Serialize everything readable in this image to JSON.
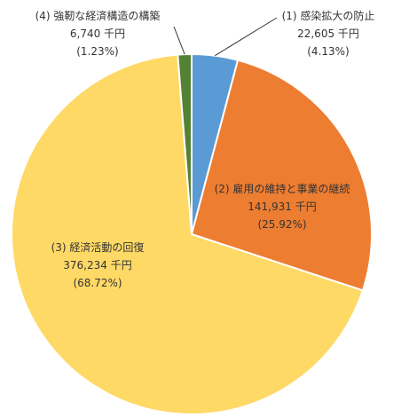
{
  "chart_data": {
    "type": "pie",
    "unit": "千円",
    "start_angle_deg": 0,
    "direction": "clockwise",
    "slices": [
      {
        "name": "(1) 感染拡大の防止",
        "value": 22605,
        "value_label": "22,605 千円",
        "percent_label": "(4.13%)",
        "color": "#5b9bd5"
      },
      {
        "name": "(2) 雇用の維持と事業の継続",
        "value": 141931,
        "value_label": "141,931 千円",
        "percent_label": "(25.92%)",
        "color": "#ed7d31"
      },
      {
        "name": "(3) 経済活動の回復",
        "value": 376234,
        "value_label": "376,234 千円",
        "percent_label": "(68.72%)",
        "color": "#ffd966"
      },
      {
        "name": "(4) 強靭な経済構造の構築",
        "value": 6740,
        "value_label": "6,740 千円",
        "percent_label": "(1.23%)",
        "color": "#548235"
      }
    ]
  }
}
